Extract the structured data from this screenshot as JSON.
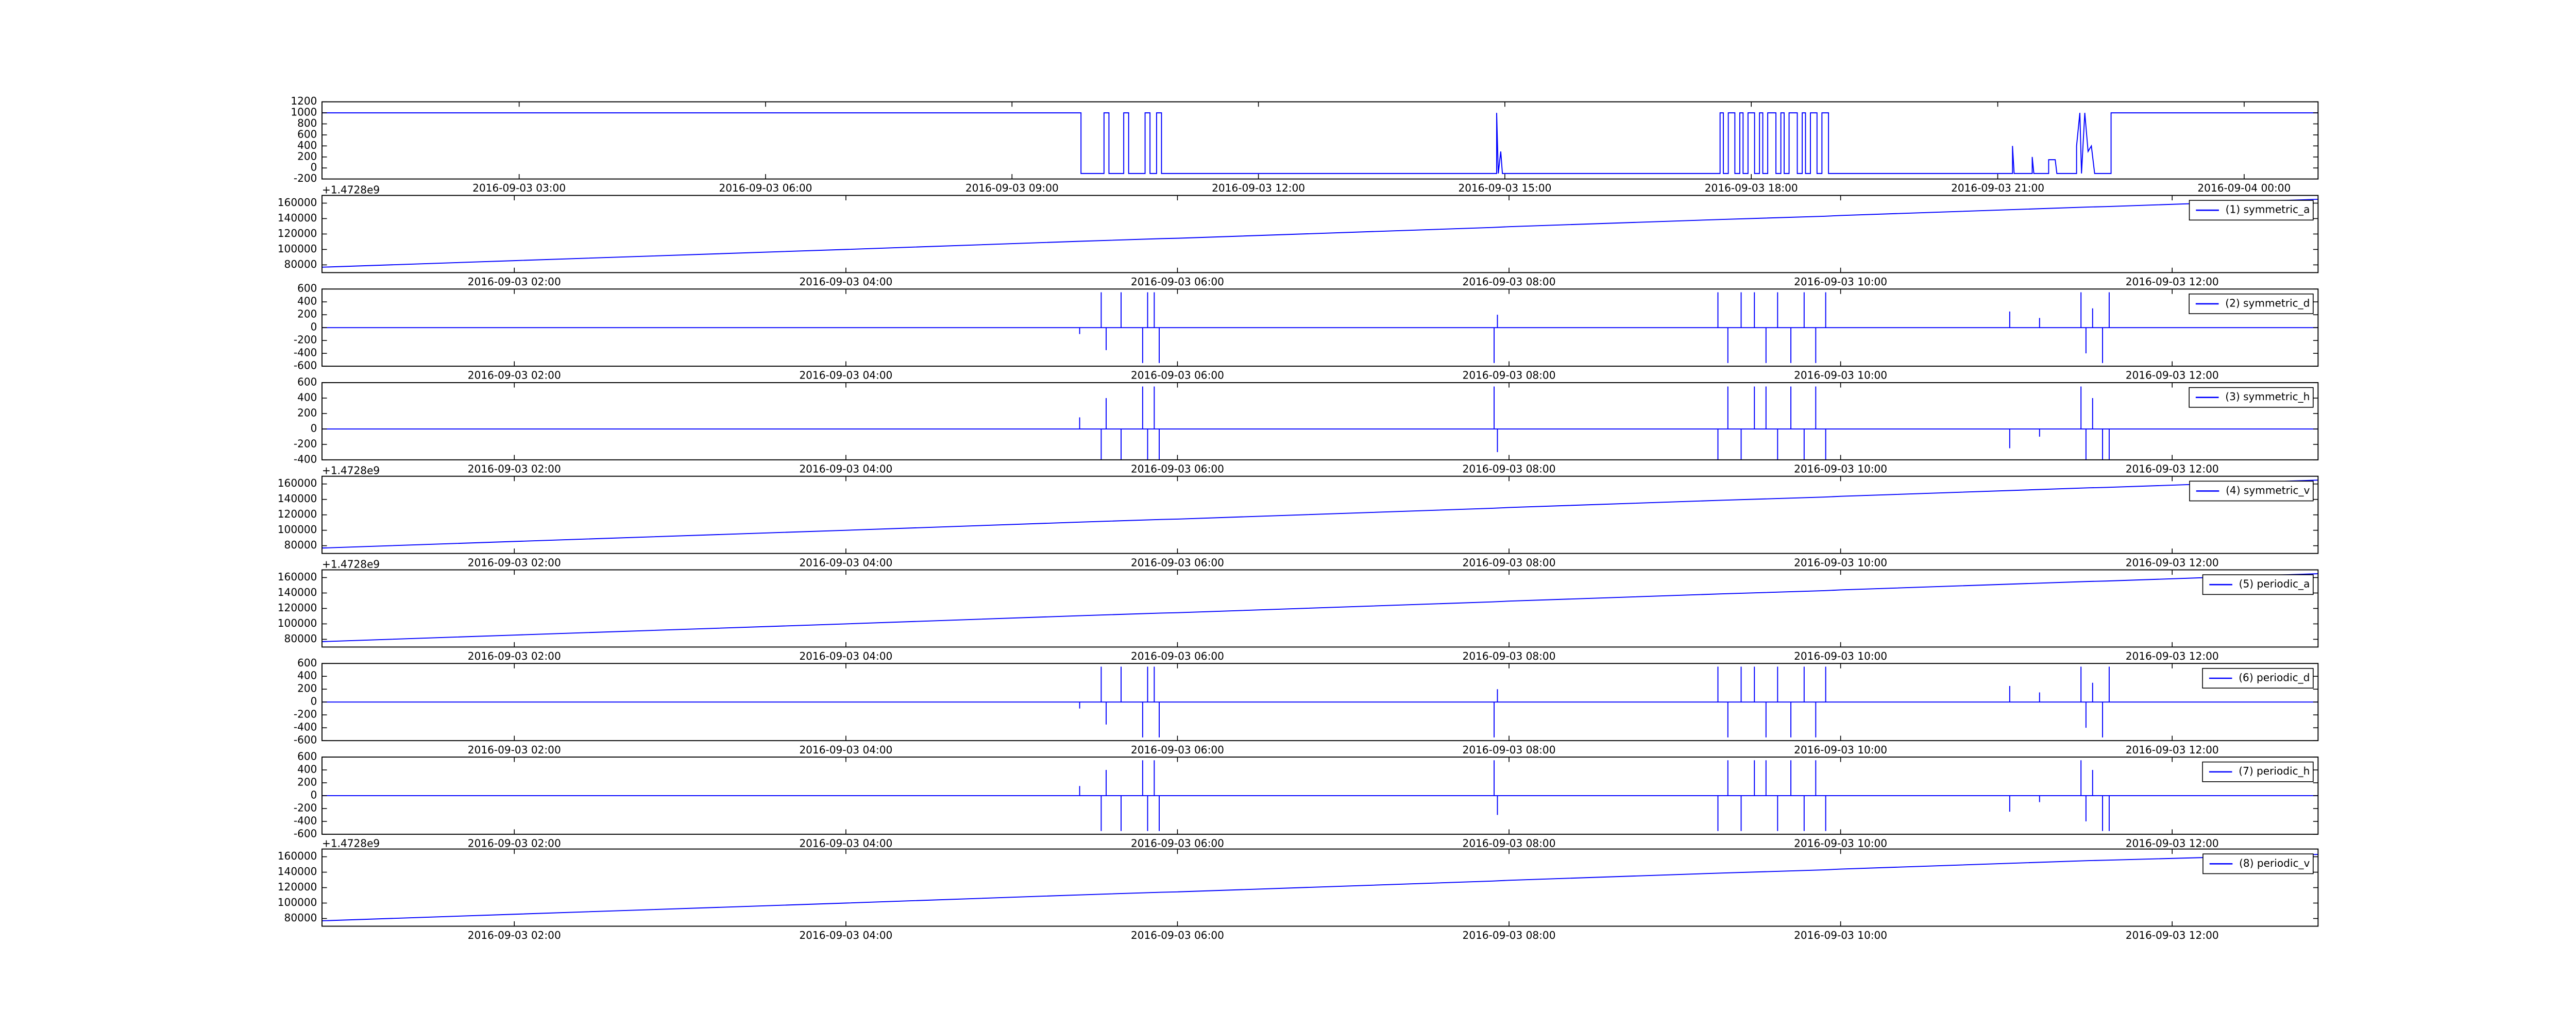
{
  "chart_data": [
    {
      "type": "line",
      "color": "#0000ff",
      "xlim": [
        0.6,
        24.9
      ],
      "ylim": [
        -200,
        1200
      ],
      "yticks": [
        -200,
        0,
        200,
        400,
        600,
        800,
        1000,
        1200
      ],
      "xticks": [
        {
          "value": 3,
          "label": "2016-09-03 03:00"
        },
        {
          "value": 6,
          "label": "2016-09-03 06:00"
        },
        {
          "value": 9,
          "label": "2016-09-03 09:00"
        },
        {
          "value": 12,
          "label": "2016-09-03 12:00"
        },
        {
          "value": 15,
          "label": "2016-09-03 15:00"
        },
        {
          "value": 18,
          "label": "2016-09-03 18:00"
        },
        {
          "value": 21,
          "label": "2016-09-03 21:00"
        },
        {
          "value": 24,
          "label": "2016-09-04 00:00"
        }
      ],
      "x": [
        0.6,
        9.84,
        9.84,
        10.12,
        10.12,
        10.18,
        10.18,
        10.36,
        10.36,
        10.42,
        10.42,
        10.62,
        10.62,
        10.68,
        10.68,
        10.76,
        10.76,
        10.82,
        10.82,
        14.9,
        14.9,
        14.92,
        14.95,
        14.97,
        17.62,
        17.62,
        17.66,
        17.66,
        17.72,
        17.72,
        17.8,
        17.8,
        17.86,
        17.86,
        17.9,
        17.9,
        17.96,
        17.96,
        18.04,
        18.04,
        18.1,
        18.1,
        18.14,
        18.14,
        18.2,
        18.2,
        18.3,
        18.3,
        18.36,
        18.36,
        18.4,
        18.4,
        18.46,
        18.46,
        18.56,
        18.56,
        18.62,
        18.62,
        18.66,
        18.66,
        18.72,
        18.72,
        18.8,
        18.8,
        18.86,
        18.86,
        18.94,
        18.94,
        21.18,
        21.18,
        21.2,
        21.42,
        21.42,
        21.44,
        21.62,
        21.62,
        21.7,
        21.72,
        21.96,
        21.96,
        22.0,
        22.02,
        22.06,
        22.1,
        22.14,
        22.18,
        22.38,
        22.38,
        24.9
      ],
      "values": [
        1000,
        1000,
        -100,
        -100,
        1000,
        1000,
        -100,
        -100,
        1000,
        1000,
        -100,
        -100,
        1000,
        1000,
        -100,
        -100,
        1000,
        1000,
        -100,
        -100,
        1000,
        -100,
        300,
        -100,
        -100,
        1000,
        1000,
        -100,
        -100,
        1000,
        1000,
        -100,
        -100,
        1000,
        1000,
        -100,
        -100,
        1000,
        1000,
        -100,
        -100,
        1000,
        1000,
        -100,
        -100,
        1000,
        1000,
        -100,
        -100,
        1000,
        1000,
        -100,
        -100,
        1000,
        1000,
        -100,
        -100,
        1000,
        1000,
        -100,
        -100,
        1000,
        1000,
        -100,
        -100,
        1000,
        1000,
        -100,
        -100,
        400,
        -100,
        -100,
        200,
        -100,
        -100,
        150,
        150,
        -100,
        -100,
        400,
        1000,
        -100,
        1000,
        300,
        400,
        -100,
        -100,
        1000,
        1000
      ]
    },
    {
      "type": "line",
      "offset_text": "+1.4728e9",
      "legend": "upper right",
      "xlim": [
        0.84,
        12.88
      ],
      "ylim": [
        70000,
        170000
      ],
      "yticks": [
        80000,
        100000,
        120000,
        140000,
        160000
      ],
      "xticks": [
        {
          "value": 2,
          "label": "2016-09-03 02:00"
        },
        {
          "value": 4,
          "label": "2016-09-03 04:00"
        },
        {
          "value": 6,
          "label": "2016-09-03 06:00"
        },
        {
          "value": 8,
          "label": "2016-09-03 08:00"
        },
        {
          "value": 10,
          "label": "2016-09-03 10:00"
        },
        {
          "value": 12,
          "label": "2016-09-03 12:00"
        }
      ],
      "x": [
        0.84,
        2,
        4,
        5.4,
        5.9,
        6,
        7.9,
        8,
        9.3,
        9.9,
        10,
        11.5,
        11.6,
        12.88
      ],
      "series": [
        {
          "name": "(1) symmetric_a",
          "color": "#0000ff",
          "values": [
            77000,
            85500,
            100000,
            110500,
            114000,
            114500,
            128500,
            129500,
            139000,
            143000,
            144000,
            155000,
            155500,
            165000
          ]
        }
      ]
    },
    {
      "type": "stem",
      "legend": "upper right",
      "xlim": [
        0.84,
        12.88
      ],
      "ylim": [
        -600,
        600
      ],
      "yticks": [
        -600,
        -400,
        -200,
        0,
        200,
        400,
        600
      ],
      "xticks": [
        {
          "value": 2,
          "label": "2016-09-03 02:00"
        },
        {
          "value": 4,
          "label": "2016-09-03 04:00"
        },
        {
          "value": 6,
          "label": "2016-09-03 06:00"
        },
        {
          "value": 8,
          "label": "2016-09-03 08:00"
        },
        {
          "value": 10,
          "label": "2016-09-03 10:00"
        },
        {
          "value": 12,
          "label": "2016-09-03 12:00"
        }
      ],
      "x": [
        5.41,
        5.54,
        5.57,
        5.66,
        5.79,
        5.82,
        5.86,
        5.89,
        7.91,
        7.93,
        9.26,
        9.32,
        9.4,
        9.48,
        9.55,
        9.62,
        9.7,
        9.78,
        9.85,
        9.91,
        11.02,
        11.2,
        11.45,
        11.48,
        11.52,
        11.58,
        11.62
      ],
      "series": [
        {
          "name": "(2) symmetric_d",
          "color": "#0000ff",
          "values": [
            -100,
            550,
            -350,
            550,
            -550,
            550,
            550,
            -550,
            -550,
            200,
            550,
            -550,
            550,
            550,
            -550,
            550,
            -550,
            550,
            -550,
            550,
            250,
            150,
            550,
            -400,
            300,
            -550,
            550
          ]
        }
      ]
    },
    {
      "type": "stem",
      "legend": "upper right",
      "xlim": [
        0.84,
        12.88
      ],
      "ylim": [
        -400,
        600
      ],
      "yticks": [
        -400,
        -200,
        0,
        200,
        400,
        600
      ],
      "xticks": [
        {
          "value": 2,
          "label": "2016-09-03 02:00"
        },
        {
          "value": 4,
          "label": "2016-09-03 04:00"
        },
        {
          "value": 6,
          "label": "2016-09-03 06:00"
        },
        {
          "value": 8,
          "label": "2016-09-03 08:00"
        },
        {
          "value": 10,
          "label": "2016-09-03 10:00"
        },
        {
          "value": 12,
          "label": "2016-09-03 12:00"
        }
      ],
      "x": [
        5.41,
        5.54,
        5.57,
        5.66,
        5.79,
        5.82,
        5.86,
        5.89,
        7.91,
        7.93,
        9.26,
        9.32,
        9.4,
        9.48,
        9.55,
        9.62,
        9.7,
        9.78,
        9.85,
        9.91,
        11.02,
        11.2,
        11.45,
        11.48,
        11.52,
        11.58,
        11.62
      ],
      "series": [
        {
          "name": "(3) symmetric_h",
          "color": "#0000ff",
          "values": [
            150,
            -400,
            400,
            -400,
            550,
            -400,
            550,
            -400,
            550,
            -300,
            -400,
            550,
            -400,
            550,
            550,
            -400,
            550,
            -400,
            550,
            -400,
            -250,
            -100,
            550,
            -400,
            400,
            -400,
            -400
          ]
        }
      ]
    },
    {
      "type": "line",
      "offset_text": "+1.4728e9",
      "legend": "upper right",
      "xlim": [
        0.84,
        12.88
      ],
      "ylim": [
        70000,
        170000
      ],
      "yticks": [
        80000,
        100000,
        120000,
        140000,
        160000
      ],
      "xticks": [
        {
          "value": 2,
          "label": "2016-09-03 02:00"
        },
        {
          "value": 4,
          "label": "2016-09-03 04:00"
        },
        {
          "value": 6,
          "label": "2016-09-03 06:00"
        },
        {
          "value": 8,
          "label": "2016-09-03 08:00"
        },
        {
          "value": 10,
          "label": "2016-09-03 10:00"
        },
        {
          "value": 12,
          "label": "2016-09-03 12:00"
        }
      ],
      "x": [
        0.84,
        2,
        4,
        5.4,
        5.9,
        6,
        7.9,
        8,
        9.3,
        9.9,
        10,
        11.5,
        11.6,
        12.88
      ],
      "series": [
        {
          "name": "(4) symmetric_v",
          "color": "#0000ff",
          "values": [
            77000,
            85500,
            100000,
            110500,
            114000,
            114500,
            128500,
            129500,
            139000,
            143000,
            144000,
            155000,
            155500,
            165000
          ]
        }
      ]
    },
    {
      "type": "line",
      "offset_text": "+1.4728e9",
      "legend": "upper right",
      "xlim": [
        0.84,
        12.88
      ],
      "ylim": [
        70000,
        170000
      ],
      "yticks": [
        80000,
        100000,
        120000,
        140000,
        160000
      ],
      "xticks": [
        {
          "value": 2,
          "label": "2016-09-03 02:00"
        },
        {
          "value": 4,
          "label": "2016-09-03 04:00"
        },
        {
          "value": 6,
          "label": "2016-09-03 06:00"
        },
        {
          "value": 8,
          "label": "2016-09-03 08:00"
        },
        {
          "value": 10,
          "label": "2016-09-03 10:00"
        },
        {
          "value": 12,
          "label": "2016-09-03 12:00"
        }
      ],
      "x": [
        0.84,
        2,
        4,
        5.4,
        5.9,
        6,
        7.9,
        8,
        9.3,
        9.9,
        10,
        11.5,
        11.6,
        12.88
      ],
      "series": [
        {
          "name": "(5) periodic_a",
          "color": "#0000ff",
          "values": [
            77000,
            85500,
            100000,
            110500,
            114000,
            114500,
            128500,
            129500,
            139000,
            143000,
            144000,
            155000,
            155500,
            165000
          ]
        }
      ]
    },
    {
      "type": "stem",
      "legend": "upper right",
      "xlim": [
        0.84,
        12.88
      ],
      "ylim": [
        -600,
        600
      ],
      "yticks": [
        -600,
        -400,
        -200,
        0,
        200,
        400,
        600
      ],
      "xticks": [
        {
          "value": 2,
          "label": "2016-09-03 02:00"
        },
        {
          "value": 4,
          "label": "2016-09-03 04:00"
        },
        {
          "value": 6,
          "label": "2016-09-03 06:00"
        },
        {
          "value": 8,
          "label": "2016-09-03 08:00"
        },
        {
          "value": 10,
          "label": "2016-09-03 10:00"
        },
        {
          "value": 12,
          "label": "2016-09-03 12:00"
        }
      ],
      "x": [
        5.41,
        5.54,
        5.57,
        5.66,
        5.79,
        5.82,
        5.86,
        5.89,
        7.91,
        7.93,
        9.26,
        9.32,
        9.4,
        9.48,
        9.55,
        9.62,
        9.7,
        9.78,
        9.85,
        9.91,
        11.02,
        11.2,
        11.45,
        11.48,
        11.52,
        11.58,
        11.62
      ],
      "series": [
        {
          "name": "(6) periodic_d",
          "color": "#0000ff",
          "values": [
            -100,
            550,
            -350,
            550,
            -550,
            550,
            550,
            -550,
            -550,
            200,
            550,
            -550,
            550,
            550,
            -550,
            550,
            -550,
            550,
            -550,
            550,
            250,
            150,
            550,
            -400,
            300,
            -550,
            550
          ]
        }
      ]
    },
    {
      "type": "stem",
      "legend": "upper right",
      "xlim": [
        0.84,
        12.88
      ],
      "ylim": [
        -600,
        600
      ],
      "yticks": [
        -600,
        -400,
        -200,
        0,
        200,
        400,
        600
      ],
      "xticks": [
        {
          "value": 2,
          "label": "2016-09-03 02:00"
        },
        {
          "value": 4,
          "label": "2016-09-03 04:00"
        },
        {
          "value": 6,
          "label": "2016-09-03 06:00"
        },
        {
          "value": 8,
          "label": "2016-09-03 08:00"
        },
        {
          "value": 10,
          "label": "2016-09-03 10:00"
        },
        {
          "value": 12,
          "label": "2016-09-03 12:00"
        }
      ],
      "x": [
        5.41,
        5.54,
        5.57,
        5.66,
        5.79,
        5.82,
        5.86,
        5.89,
        7.91,
        7.93,
        9.26,
        9.32,
        9.4,
        9.48,
        9.55,
        9.62,
        9.7,
        9.78,
        9.85,
        9.91,
        11.02,
        11.2,
        11.45,
        11.48,
        11.52,
        11.58,
        11.62
      ],
      "series": [
        {
          "name": "(7) periodic_h",
          "color": "#0000ff",
          "values": [
            150,
            -550,
            400,
            -550,
            550,
            -550,
            550,
            -550,
            550,
            -300,
            -550,
            550,
            -550,
            550,
            550,
            -550,
            550,
            -550,
            550,
            -550,
            -250,
            -100,
            550,
            -400,
            400,
            -550,
            -550
          ]
        }
      ]
    },
    {
      "type": "line",
      "offset_text": "+1.4728e9",
      "legend": "upper right",
      "xlim": [
        0.84,
        12.88
      ],
      "ylim": [
        70000,
        170000
      ],
      "yticks": [
        80000,
        100000,
        120000,
        140000,
        160000
      ],
      "xticks": [
        {
          "value": 2,
          "label": "2016-09-03 02:00"
        },
        {
          "value": 4,
          "label": "2016-09-03 04:00"
        },
        {
          "value": 6,
          "label": "2016-09-03 06:00"
        },
        {
          "value": 8,
          "label": "2016-09-03 08:00"
        },
        {
          "value": 10,
          "label": "2016-09-03 10:00"
        },
        {
          "value": 12,
          "label": "2016-09-03 12:00"
        }
      ],
      "x": [
        0.84,
        2,
        4,
        5.4,
        5.9,
        6,
        7.9,
        8,
        9.3,
        9.9,
        10,
        11.5,
        11.6,
        12.88
      ],
      "series": [
        {
          "name": "(8) periodic_v",
          "color": "#0000ff",
          "values": [
            77000,
            85500,
            100000,
            110500,
            114000,
            114500,
            128500,
            129500,
            139000,
            143000,
            144000,
            155000,
            155500,
            163000
          ]
        }
      ]
    }
  ]
}
